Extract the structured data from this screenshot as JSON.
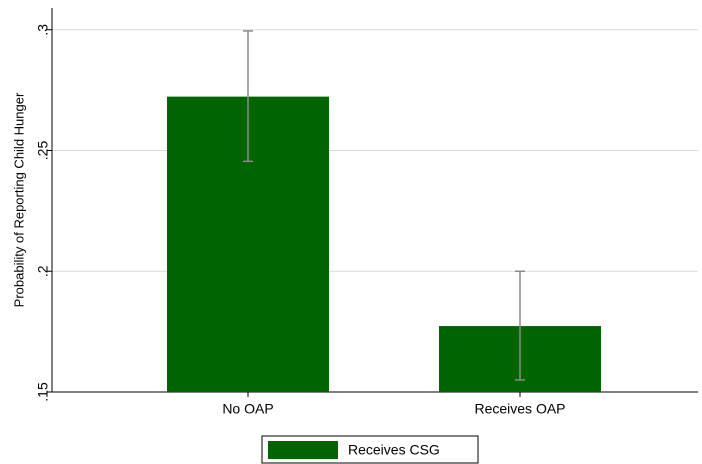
{
  "chart_data": {
    "type": "bar",
    "ylabel": "Probability of Reporting Child Hunger",
    "categories": [
      "No OAP",
      "Receives OAP"
    ],
    "series": [
      {
        "name": "Receives CSG",
        "color": "#006400",
        "values": [
          0.2723,
          0.1773
        ],
        "ci_low": [
          0.2455,
          0.155
        ],
        "ci_high": [
          0.2995,
          0.2
        ]
      }
    ],
    "ylim": [
      0.15,
      0.309
    ],
    "yticks": [
      {
        "value": 0.15,
        "label": ".15"
      },
      {
        "value": 0.2,
        "label": ".2"
      },
      {
        "value": 0.25,
        "label": ".25"
      },
      {
        "value": 0.3,
        "label": ".3"
      }
    ],
    "grid": true,
    "legend": "bottom"
  }
}
